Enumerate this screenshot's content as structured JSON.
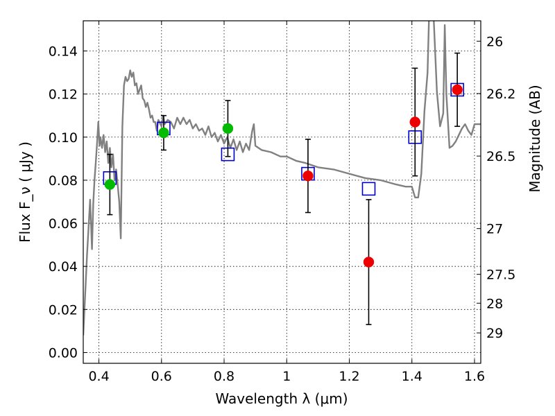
{
  "chart_data": {
    "type": "scatter",
    "xlabel": "Wavelength  λ (μm)",
    "ylabel": "Flux  F_ν  ( μJy )",
    "y2label": "Magnitude (AB)",
    "xlim": [
      0.35,
      1.62
    ],
    "ylim": [
      -0.005,
      0.154
    ],
    "grid": true,
    "x_ticks": [
      {
        "value": 0.4,
        "label": "0.4"
      },
      {
        "value": 0.6,
        "label": "0.6"
      },
      {
        "value": 0.8,
        "label": "0.8"
      },
      {
        "value": 1.0,
        "label": "1"
      },
      {
        "value": 1.2,
        "label": "1.2"
      },
      {
        "value": 1.4,
        "label": "1.4"
      },
      {
        "value": 1.6,
        "label": "1.6"
      }
    ],
    "y_ticks": [
      {
        "value": 0.0,
        "label": "0.00"
      },
      {
        "value": 0.02,
        "label": "0.02"
      },
      {
        "value": 0.04,
        "label": "0.04"
      },
      {
        "value": 0.06,
        "label": "0.06"
      },
      {
        "value": 0.08,
        "label": "0.08"
      },
      {
        "value": 0.1,
        "label": "0.10"
      },
      {
        "value": 0.12,
        "label": "0.12"
      },
      {
        "value": 0.14,
        "label": "0.14"
      }
    ],
    "y2_ticks": [
      {
        "label": "26",
        "mag": 26.0
      },
      {
        "label": "26.2",
        "mag": 26.2
      },
      {
        "label": "26.5",
        "mag": 26.5
      },
      {
        "label": "27",
        "mag": 27.0
      },
      {
        "label": "27.5",
        "mag": 27.5
      },
      {
        "label": "28",
        "mag": 28.0
      },
      {
        "label": "29",
        "mag": 29.0
      }
    ],
    "series": [
      {
        "kind": "line",
        "color": "#808080",
        "x": [
          0.35,
          0.362,
          0.372,
          0.378,
          0.382,
          0.386,
          0.39,
          0.394,
          0.398,
          0.402,
          0.405,
          0.41,
          0.415,
          0.42,
          0.425,
          0.43,
          0.435,
          0.44,
          0.445,
          0.45,
          0.455,
          0.46,
          0.465,
          0.47,
          0.475,
          0.48,
          0.485,
          0.49,
          0.495,
          0.5,
          0.505,
          0.51,
          0.515,
          0.52,
          0.525,
          0.53,
          0.535,
          0.54,
          0.545,
          0.55,
          0.555,
          0.56,
          0.565,
          0.57,
          0.575,
          0.58,
          0.585,
          0.59,
          0.6,
          0.605,
          0.61,
          0.62,
          0.63,
          0.64,
          0.65,
          0.66,
          0.67,
          0.68,
          0.69,
          0.7,
          0.71,
          0.72,
          0.73,
          0.74,
          0.75,
          0.76,
          0.77,
          0.78,
          0.79,
          0.8,
          0.81,
          0.82,
          0.83,
          0.84,
          0.85,
          0.86,
          0.87,
          0.88,
          0.89,
          0.895,
          0.9,
          0.92,
          0.95,
          0.98,
          1.0,
          1.03,
          1.06,
          1.1,
          1.15,
          1.2,
          1.25,
          1.3,
          1.35,
          1.38,
          1.4,
          1.41,
          1.42,
          1.43,
          1.44,
          1.45,
          1.455,
          1.46,
          1.47,
          1.48,
          1.49,
          1.5,
          1.505,
          1.51,
          1.52,
          1.53,
          1.54,
          1.55,
          1.56,
          1.57,
          1.58,
          1.59,
          1.6,
          1.62
        ],
        "y": [
          0.008,
          0.045,
          0.071,
          0.048,
          0.069,
          0.08,
          0.088,
          0.097,
          0.107,
          0.096,
          0.1,
          0.095,
          0.101,
          0.093,
          0.098,
          0.088,
          0.095,
          0.086,
          0.092,
          0.08,
          0.085,
          0.078,
          0.07,
          0.053,
          0.105,
          0.124,
          0.128,
          0.126,
          0.127,
          0.131,
          0.128,
          0.13,
          0.124,
          0.125,
          0.12,
          0.122,
          0.124,
          0.118,
          0.117,
          0.114,
          0.116,
          0.113,
          0.109,
          0.11,
          0.107,
          0.107,
          0.103,
          0.108,
          0.105,
          0.11,
          0.106,
          0.108,
          0.107,
          0.104,
          0.109,
          0.106,
          0.109,
          0.106,
          0.108,
          0.104,
          0.106,
          0.103,
          0.104,
          0.101,
          0.105,
          0.1,
          0.102,
          0.098,
          0.101,
          0.097,
          0.1,
          0.095,
          0.099,
          0.094,
          0.098,
          0.093,
          0.097,
          0.094,
          0.103,
          0.106,
          0.096,
          0.094,
          0.093,
          0.091,
          0.091,
          0.089,
          0.088,
          0.086,
          0.085,
          0.083,
          0.081,
          0.08,
          0.078,
          0.077,
          0.077,
          0.072,
          0.072,
          0.083,
          0.112,
          0.13,
          0.158,
          0.16,
          0.154,
          0.121,
          0.105,
          0.111,
          0.152,
          0.12,
          0.095,
          0.096,
          0.098,
          0.101,
          0.104,
          0.106,
          0.103,
          0.101,
          0.106,
          0.106
        ]
      },
      {
        "kind": "points",
        "marker": "open-square",
        "color": "#0000cc",
        "x": [
          0.435,
          0.607,
          0.812,
          1.068,
          1.262,
          1.41,
          1.545
        ],
        "y": [
          0.081,
          0.104,
          0.092,
          0.083,
          0.076,
          0.1,
          0.122
        ]
      },
      {
        "kind": "points",
        "marker": "filled-circle",
        "color": "#00bb00",
        "x": [
          0.435,
          0.607,
          0.812
        ],
        "y": [
          0.078,
          0.102,
          0.104
        ],
        "yerr": [
          0.014,
          0.008,
          0.013
        ]
      },
      {
        "kind": "points",
        "marker": "filled-circle",
        "color": "#ee0000",
        "x": [
          1.068,
          1.262,
          1.41,
          1.545
        ],
        "y": [
          0.082,
          0.042,
          0.107,
          0.122
        ],
        "yerr": [
          0.017,
          0.029,
          0.025,
          0.017
        ]
      }
    ]
  }
}
